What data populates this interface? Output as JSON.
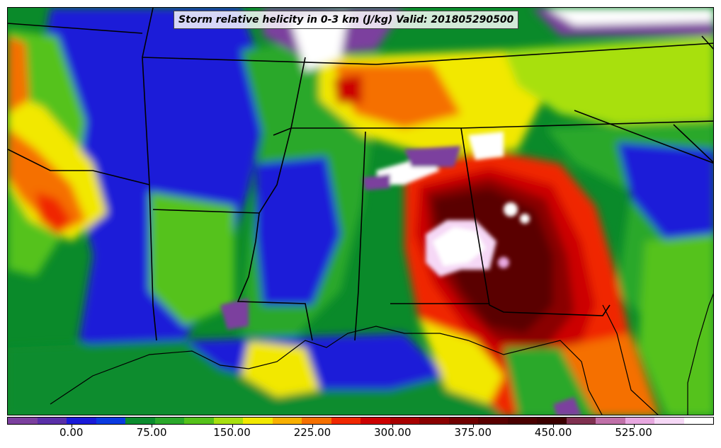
{
  "title": "Storm relative helicity in 0-3 km (J/kg) Valid: 201805290500",
  "colorbar": {
    "min": -60,
    "max": 600,
    "colors": [
      "#7b3f9e",
      "#5a2fa8",
      "#1a1ad8",
      "#0a3ae0",
      "#0b8c2e",
      "#2aa82a",
      "#55c21a",
      "#a8e010",
      "#f2e800",
      "#f8b000",
      "#f57000",
      "#f02800",
      "#cc0000",
      "#a80000",
      "#8a0000",
      "#700000",
      "#5a0000",
      "#4a0000",
      "#3c0000",
      "#803050",
      "#c070a8",
      "#e8a8e0",
      "#f6d8f6",
      "#ffffff"
    ],
    "tick_labels": [
      "0.00",
      "75.00",
      "150.00",
      "225.00",
      "300.00",
      "375.00",
      "450.00",
      "525.00"
    ],
    "tick_values": [
      0,
      75,
      150,
      225,
      300,
      375,
      450,
      525
    ]
  }
}
